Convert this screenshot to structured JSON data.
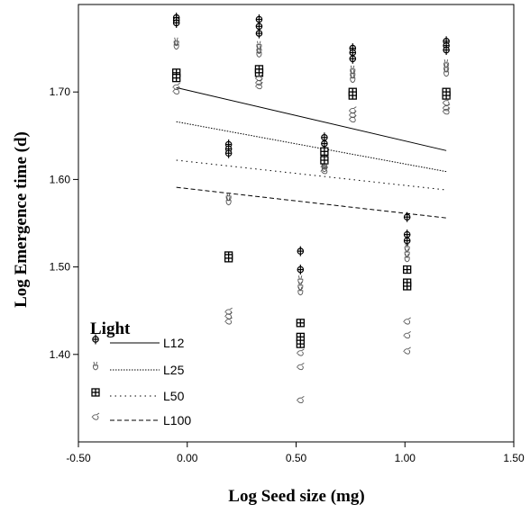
{
  "chart_data": {
    "type": "scatter",
    "title": "",
    "xlabel": "Log Seed size (mg)",
    "ylabel": "Log Emergence time (d)",
    "xlim": [
      -0.5,
      1.5
    ],
    "ylim": [
      1.3,
      1.8
    ],
    "x_ticks": [
      "-0.50",
      "0.00",
      "0.50",
      "1.00",
      "1.50"
    ],
    "y_ticks": [
      "1.40",
      "1.50",
      "1.60",
      "1.70"
    ],
    "grid": false,
    "legend": {
      "title": "Light",
      "position": "bottom-left",
      "entries": [
        "L12",
        "L25",
        "L50",
        "L100"
      ]
    },
    "series": [
      {
        "name": "L12",
        "marker": "circle-plus",
        "line_style": "solid",
        "fit_line": [
          [
            -0.05,
            1.705
          ],
          [
            1.19,
            1.633
          ]
        ],
        "points": [
          [
            -0.05,
            1.785
          ],
          [
            -0.05,
            1.782
          ],
          [
            -0.05,
            1.779
          ],
          [
            0.19,
            1.64
          ],
          [
            0.19,
            1.635
          ],
          [
            0.19,
            1.63
          ],
          [
            0.33,
            1.783
          ],
          [
            0.33,
            1.775
          ],
          [
            0.33,
            1.767
          ],
          [
            0.52,
            1.518
          ],
          [
            0.52,
            1.497
          ],
          [
            0.63,
            1.648
          ],
          [
            0.63,
            1.641
          ],
          [
            0.63,
            1.633
          ],
          [
            0.63,
            1.626
          ],
          [
            0.76,
            1.75
          ],
          [
            0.76,
            1.745
          ],
          [
            0.76,
            1.738
          ],
          [
            1.01,
            1.557
          ],
          [
            1.01,
            1.537
          ],
          [
            1.01,
            1.53
          ],
          [
            1.19,
            1.758
          ],
          [
            1.19,
            1.753
          ],
          [
            1.19,
            1.748
          ]
        ]
      },
      {
        "name": "L25",
        "marker": "peace-hand",
        "line_style": "dotted",
        "fit_line": [
          [
            -0.05,
            1.666
          ],
          [
            1.19,
            1.609
          ]
        ],
        "points": [
          [
            -0.05,
            1.757
          ],
          [
            -0.05,
            1.753
          ],
          [
            0.19,
            1.58
          ],
          [
            0.19,
            1.575
          ],
          [
            0.33,
            1.753
          ],
          [
            0.33,
            1.748
          ],
          [
            0.33,
            1.744
          ],
          [
            0.52,
            1.485
          ],
          [
            0.52,
            1.478
          ],
          [
            0.52,
            1.472
          ],
          [
            0.63,
            1.62
          ],
          [
            0.63,
            1.617
          ],
          [
            0.63,
            1.613
          ],
          [
            0.76,
            1.725
          ],
          [
            0.76,
            1.72
          ],
          [
            0.76,
            1.715
          ],
          [
            1.01,
            1.522
          ],
          [
            1.01,
            1.516
          ],
          [
            1.01,
            1.51
          ],
          [
            1.19,
            1.732
          ],
          [
            1.19,
            1.727
          ],
          [
            1.19,
            1.722
          ]
        ]
      },
      {
        "name": "L50",
        "marker": "boxed-cross",
        "line_style": "sparse-dotted",
        "fit_line": [
          [
            -0.05,
            1.622
          ],
          [
            1.19,
            1.588
          ]
        ],
        "points": [
          [
            -0.05,
            1.722
          ],
          [
            -0.05,
            1.716
          ],
          [
            0.19,
            1.513
          ],
          [
            0.19,
            1.51
          ],
          [
            0.33,
            1.726
          ],
          [
            0.33,
            1.722
          ],
          [
            0.52,
            1.436
          ],
          [
            0.52,
            1.42
          ],
          [
            0.52,
            1.412
          ],
          [
            0.63,
            1.632
          ],
          [
            0.63,
            1.622
          ],
          [
            0.76,
            1.7
          ],
          [
            0.76,
            1.696
          ],
          [
            1.01,
            1.497
          ],
          [
            1.01,
            1.482
          ],
          [
            1.01,
            1.478
          ],
          [
            1.19,
            1.7
          ],
          [
            1.19,
            1.696
          ]
        ]
      },
      {
        "name": "L100",
        "marker": "writing-hand",
        "line_style": "dashed",
        "fit_line": [
          [
            -0.05,
            1.591
          ],
          [
            1.19,
            1.556
          ]
        ],
        "points": [
          [
            -0.05,
            1.706
          ],
          [
            -0.05,
            1.701
          ],
          [
            0.19,
            1.449
          ],
          [
            0.19,
            1.444
          ],
          [
            0.19,
            1.438
          ],
          [
            0.33,
            1.716
          ],
          [
            0.33,
            1.711
          ],
          [
            0.33,
            1.707
          ],
          [
            0.52,
            1.402
          ],
          [
            0.52,
            1.386
          ],
          [
            0.52,
            1.348
          ],
          [
            0.63,
            1.615
          ],
          [
            0.63,
            1.61
          ],
          [
            0.76,
            1.679
          ],
          [
            0.76,
            1.674
          ],
          [
            0.76,
            1.669
          ],
          [
            1.01,
            1.438
          ],
          [
            1.01,
            1.422
          ],
          [
            1.01,
            1.404
          ],
          [
            1.19,
            1.688
          ],
          [
            1.19,
            1.682
          ],
          [
            1.19,
            1.678
          ]
        ]
      }
    ]
  }
}
